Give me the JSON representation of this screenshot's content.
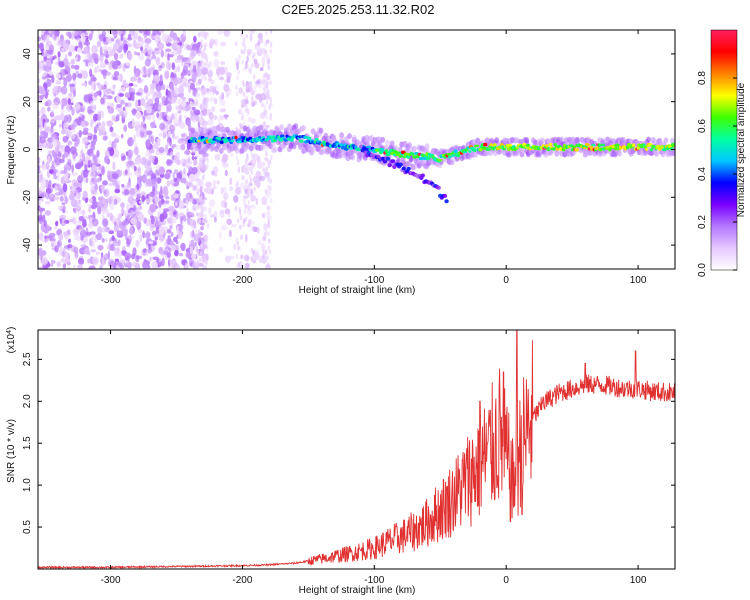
{
  "chart_data": [
    {
      "type": "heatmap",
      "title": "C2E5.2025.253.11.32.R02",
      "xlabel": "Height of straight line (km)",
      "ylabel": "Frequency (Hz)",
      "xlim": [
        -355,
        128
      ],
      "ylim": [
        -50,
        50
      ],
      "xticks": [
        -300,
        -200,
        -100,
        0,
        100
      ],
      "yticks": [
        -40,
        -20,
        0,
        20,
        40
      ],
      "colorbar": {
        "label": "Normalized spectral amplitude",
        "range": [
          0,
          1
        ],
        "ticks": [
          "0.0",
          "0.2",
          "0.4",
          "0.6",
          "0.8"
        ],
        "tick_values": [
          0.0,
          0.2,
          0.4,
          0.6,
          0.8
        ],
        "colors": [
          "#ffffff",
          "#e6c8ff",
          "#b478ff",
          "#7a00ff",
          "#0000ff",
          "#00c8ff",
          "#00ffa0",
          "#40ff00",
          "#ffff00",
          "#ff8000",
          "#ff0000",
          "#ff2060"
        ]
      },
      "regions": [
        {
          "name": "noise",
          "x_range": [
            -355,
            -180
          ],
          "freq_range": [
            -50,
            50
          ],
          "amplitude": "low-medium"
        },
        {
          "name": "signal-track",
          "points": [
            [
              -240,
              4
            ],
            [
              -200,
              4
            ],
            [
              -160,
              5
            ],
            [
              -140,
              3
            ],
            [
              -120,
              1
            ],
            [
              -100,
              0
            ],
            [
              -80,
              -2
            ],
            [
              -60,
              -3
            ],
            [
              -50,
              -4
            ],
            [
              -40,
              -2
            ],
            [
              -20,
              1
            ],
            [
              0,
              1
            ],
            [
              20,
              1
            ],
            [
              40,
              1
            ],
            [
              60,
              1
            ],
            [
              80,
              1
            ],
            [
              100,
              1
            ],
            [
              128,
              1
            ]
          ]
        },
        {
          "name": "secondary-branch",
          "points": [
            [
              -110,
              0
            ],
            [
              -90,
              -5
            ],
            [
              -70,
              -10
            ],
            [
              -55,
              -15
            ],
            [
              -45,
              -21
            ]
          ]
        }
      ]
    },
    {
      "type": "line",
      "xlabel": "Height of straight line (km)",
      "ylabel": "SNR (10 * v/v)",
      "scale_label": "(x10",
      "scale_exponent": "4",
      "scale_close": ")",
      "xlim": [
        -355,
        128
      ],
      "ylim": [
        0,
        2.85
      ],
      "xticks": [
        -300,
        -200,
        -100,
        0,
        100
      ],
      "yticks": [
        "0.5",
        "1.0",
        "1.5",
        "2.0",
        "2.5"
      ],
      "ytick_values": [
        0.5,
        1.0,
        1.5,
        2.0,
        2.5
      ],
      "color": "#e03030",
      "series": [
        {
          "name": "SNR",
          "x": [
            -355,
            -300,
            -250,
            -200,
            -180,
            -160,
            -140,
            -120,
            -100,
            -90,
            -80,
            -70,
            -60,
            -50,
            -40,
            -30,
            -20,
            -10,
            -5,
            0,
            5,
            10,
            15,
            20,
            30,
            40,
            50,
            60,
            70,
            80,
            90,
            100,
            110,
            128
          ],
          "values": [
            0.02,
            0.02,
            0.03,
            0.04,
            0.05,
            0.07,
            0.12,
            0.18,
            0.25,
            0.32,
            0.38,
            0.45,
            0.55,
            0.7,
            0.85,
            1.05,
            1.25,
            1.45,
            1.6,
            1.35,
            1.0,
            1.35,
            1.6,
            1.8,
            2.0,
            2.1,
            2.15,
            2.2,
            2.2,
            2.18,
            2.15,
            2.15,
            2.12,
            2.1
          ]
        }
      ],
      "spikes": [
        [
          -2,
          2.35
        ],
        [
          8,
          2.85
        ],
        [
          12,
          0.65
        ],
        [
          60,
          2.45
        ],
        [
          98,
          2.6
        ],
        [
          28,
          2.05
        ],
        [
          -20,
          2.0
        ]
      ]
    }
  ]
}
